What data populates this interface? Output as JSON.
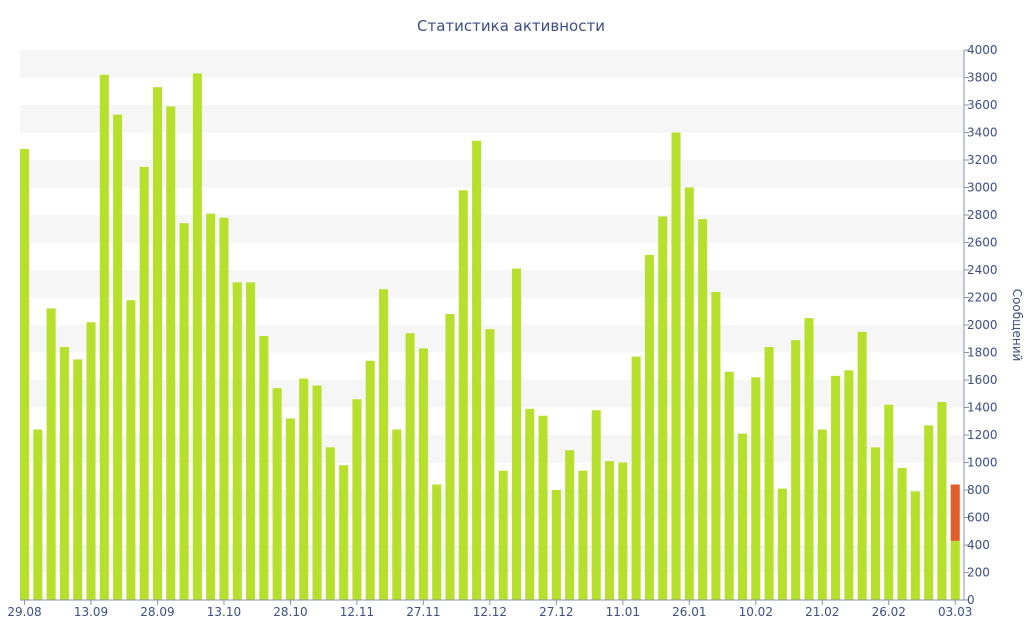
{
  "chart_data": {
    "type": "bar",
    "title": "Статистика активности",
    "xlabel": "",
    "ylabel": "Сообщений",
    "ylim": [
      0,
      4000
    ],
    "y_ticks": [
      0,
      200,
      400,
      600,
      800,
      1000,
      1200,
      1400,
      1600,
      1800,
      2000,
      2200,
      2400,
      2600,
      2800,
      3000,
      3200,
      3400,
      3600,
      3800,
      4000
    ],
    "y_axis_side": "right",
    "grid": "alternating horizontal bands",
    "x_tick_labels": [
      {
        "index": 0,
        "label": "29.08"
      },
      {
        "index": 5,
        "label": "13.09"
      },
      {
        "index": 10,
        "label": "28.09"
      },
      {
        "index": 15,
        "label": "13.10"
      },
      {
        "index": 20,
        "label": "28.10"
      },
      {
        "index": 25,
        "label": "12.11"
      },
      {
        "index": 30,
        "label": "27.11"
      },
      {
        "index": 35,
        "label": "12.12"
      },
      {
        "index": 40,
        "label": "27.12"
      },
      {
        "index": 45,
        "label": "11.01"
      },
      {
        "index": 50,
        "label": "26.01"
      },
      {
        "index": 55,
        "label": "10.02"
      },
      {
        "index": 60,
        "label": "21.02"
      },
      {
        "index": 65,
        "label": "26.02"
      },
      {
        "index": 70,
        "label": "03.03"
      }
    ],
    "values": [
      3280,
      1240,
      2120,
      1840,
      1750,
      2020,
      3820,
      3530,
      2180,
      3150,
      3730,
      3590,
      2740,
      3830,
      2810,
      2780,
      2310,
      2310,
      1920,
      1540,
      1320,
      1610,
      1560,
      1110,
      980,
      1460,
      1740,
      2260,
      1240,
      1940,
      1830,
      840,
      2080,
      2980,
      3340,
      1970,
      940,
      2410,
      1390,
      1340,
      800,
      1090,
      940,
      1380,
      1010,
      1000,
      1770,
      2510,
      2790,
      3400,
      3000,
      2770,
      2240,
      1660,
      1210,
      1620,
      1840,
      810,
      1890,
      2050,
      1240,
      1630,
      1670,
      1950,
      1110,
      1420,
      960,
      790,
      1270,
      1440,
      430
    ],
    "highlight": {
      "index": 70,
      "from": 430,
      "to": 840,
      "color": "#e05e2a"
    },
    "colors": {
      "bar": "#b7e02c",
      "highlight": "#e05e2a",
      "band": "#f6f6f6",
      "text": "#3d4f86",
      "axis": "#8b93ab"
    }
  }
}
